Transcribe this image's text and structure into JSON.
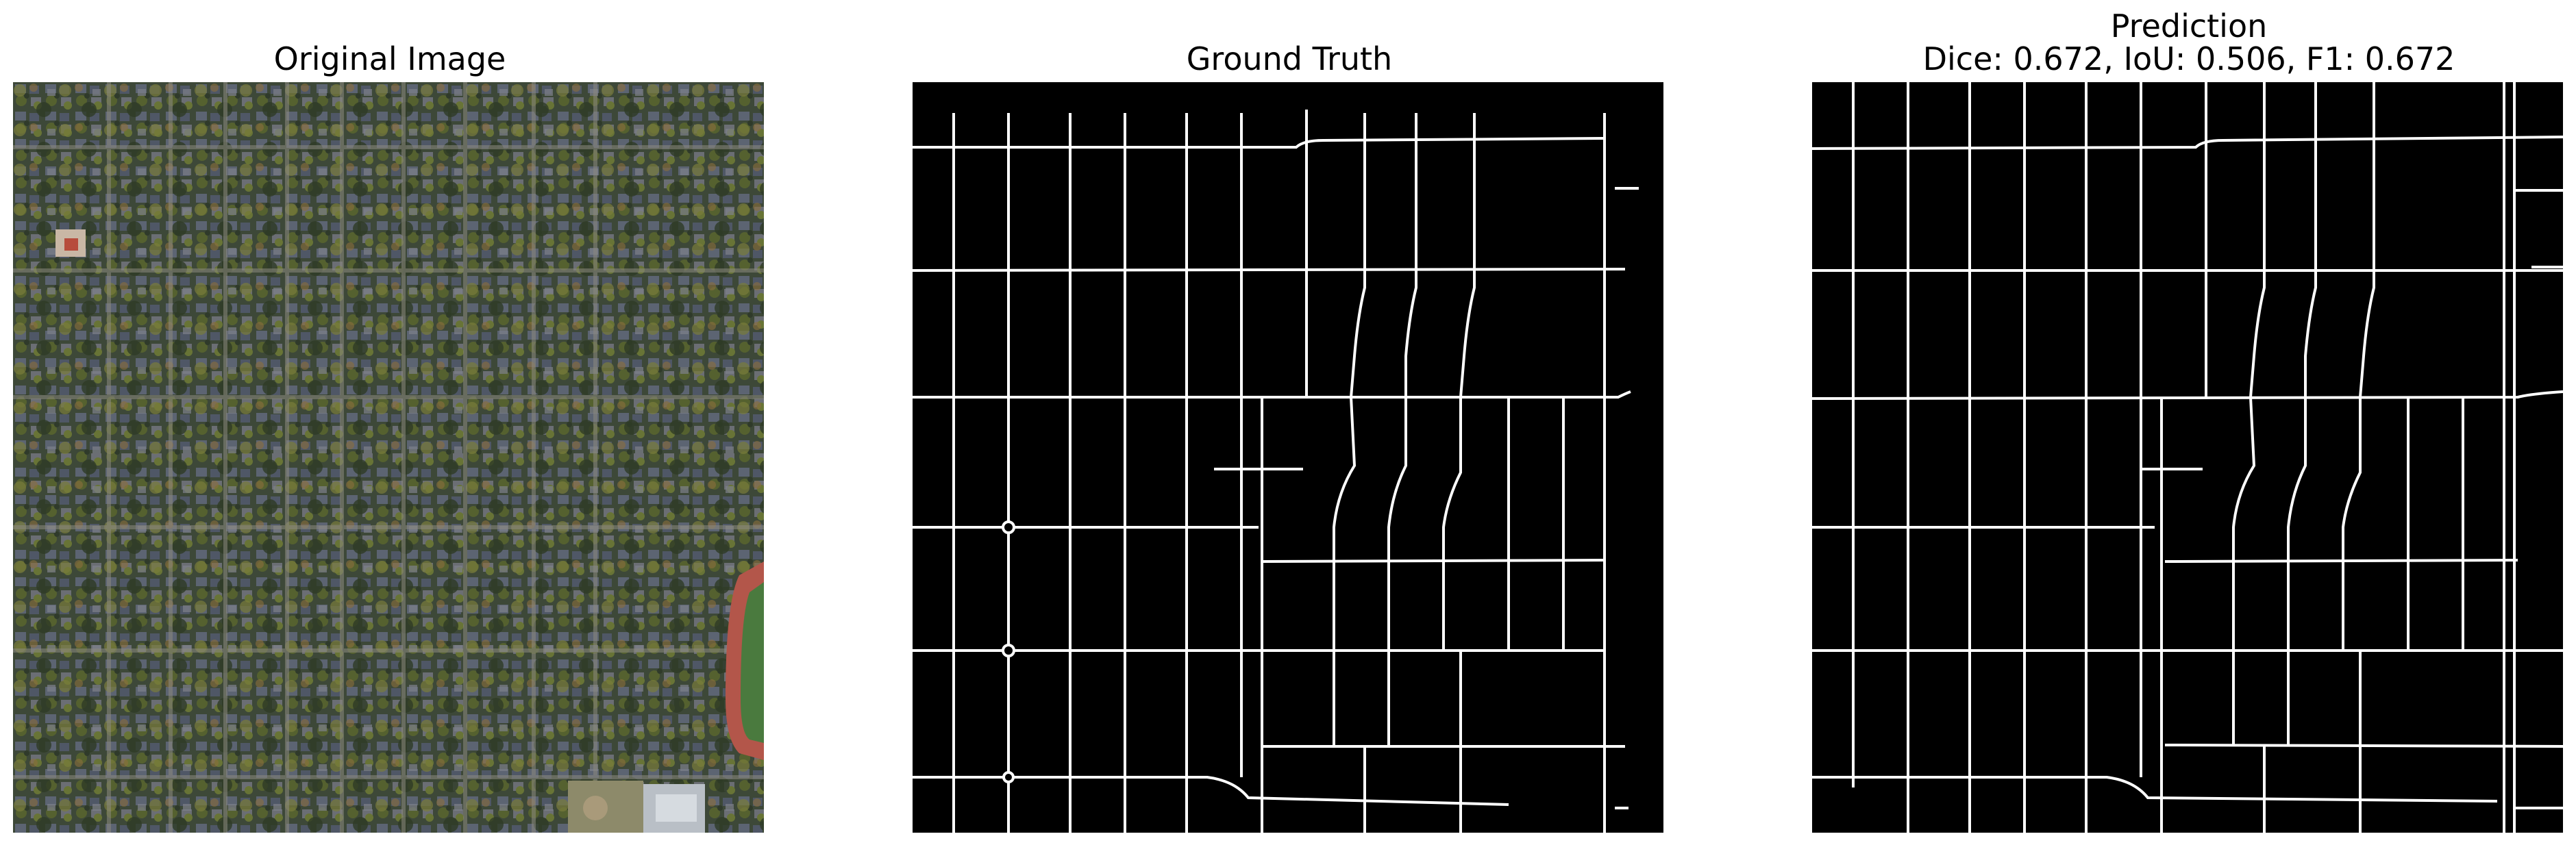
{
  "panels": {
    "original": {
      "title": "Original Image"
    },
    "ground_truth": {
      "title": "Ground Truth"
    },
    "prediction": {
      "title": "Prediction",
      "metrics": "Dice: 0.672, IoU: 0.506, F1: 0.672",
      "dice": 0.672,
      "iou": 0.506,
      "f1": 0.672
    }
  },
  "colors": {
    "background": "#ffffff",
    "mask_background": "#000000",
    "mask_road": "#ffffff",
    "aerial_base": "#3f4a3a",
    "track": "#b3564a",
    "field": "#4a7a3e"
  }
}
